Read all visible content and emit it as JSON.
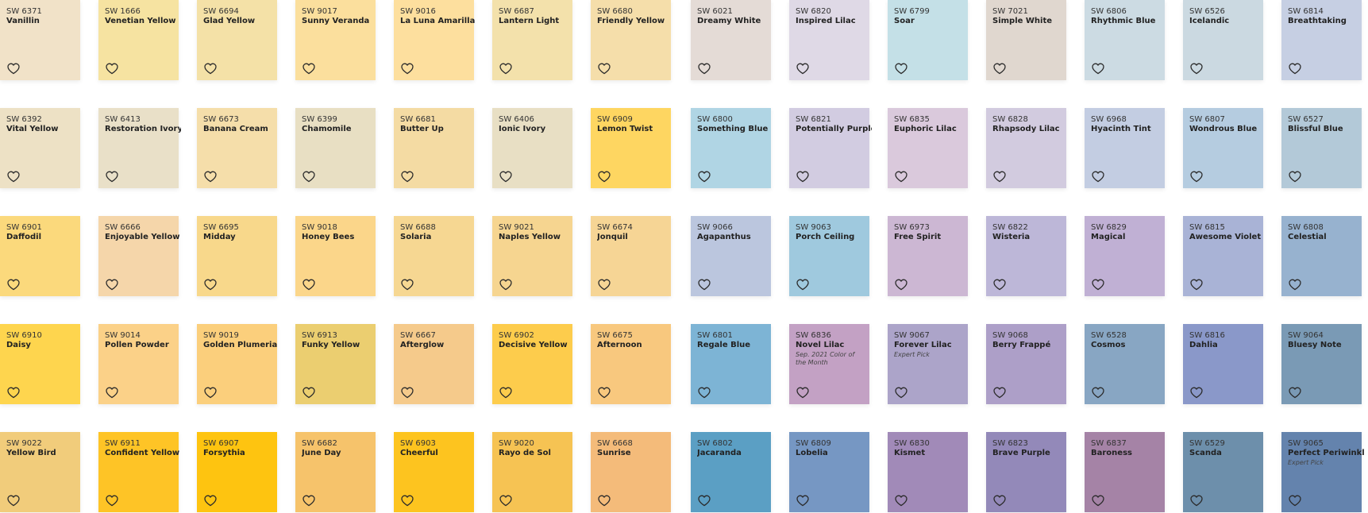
{
  "colors": {
    "text_code": "#333333",
    "text_name": "#222222",
    "heart_stroke": "#2a2a2a"
  },
  "icon": "heart-outline-icon",
  "rows": [
    {
      "chips": [
        {
          "code": "SW 6371",
          "name": "Vanillin",
          "color": "#f1e2c8"
        },
        {
          "code": "SW 1666",
          "name": "Venetian Yellow",
          "color": "#f6e3a1"
        },
        {
          "code": "SW 6694",
          "name": "Glad Yellow",
          "color": "#f4e1a7"
        },
        {
          "code": "SW 9017",
          "name": "Sunny Veranda",
          "color": "#fbdf9d"
        },
        {
          "code": "SW 9016",
          "name": "La Luna Amarilla",
          "color": "#fddf9e"
        },
        {
          "code": "SW 6687",
          "name": "Lantern Light",
          "color": "#f3e1ab"
        },
        {
          "code": "SW 6680",
          "name": "Friendly Yellow",
          "color": "#f5deaa"
        },
        {
          "code": "SW 6021",
          "name": "Dreamy White",
          "color": "#e4dbd6"
        },
        {
          "code": "SW 6820",
          "name": "Inspired Lilac",
          "color": "#dfd9e6"
        },
        {
          "code": "SW 6799",
          "name": "Soar",
          "color": "#c4e0e7"
        },
        {
          "code": "SW 7021",
          "name": "Simple White",
          "color": "#e0d7cf"
        },
        {
          "code": "SW 6806",
          "name": "Rhythmic Blue",
          "color": "#ccdbe3"
        },
        {
          "code": "SW 6526",
          "name": "Icelandic",
          "color": "#cbd9e1"
        },
        {
          "code": "SW 6814",
          "name": "Breathtaking",
          "color": "#c6cfe3"
        }
      ]
    },
    {
      "chips": [
        {
          "code": "SW 6392",
          "name": "Vital Yellow",
          "color": "#ede1c5"
        },
        {
          "code": "SW 6413",
          "name": "Restoration Ivory",
          "color": "#e9e0c8"
        },
        {
          "code": "SW 6673",
          "name": "Banana Cream",
          "color": "#f5deaa"
        },
        {
          "code": "SW 6399",
          "name": "Chamomile",
          "color": "#e8dfc3"
        },
        {
          "code": "SW 6681",
          "name": "Butter Up",
          "color": "#f4dba3"
        },
        {
          "code": "SW 6406",
          "name": "Ionic Ivory",
          "color": "#e8dfc4"
        },
        {
          "code": "SW 6909",
          "name": "Lemon Twist",
          "color": "#fed661"
        },
        {
          "code": "SW 6800",
          "name": "Something Blue",
          "color": "#b0d5e4"
        },
        {
          "code": "SW 6821",
          "name": "Potentially Purple",
          "color": "#d2cce1"
        },
        {
          "code": "SW 6835",
          "name": "Euphoric Lilac",
          "color": "#dac9dc"
        },
        {
          "code": "SW 6828",
          "name": "Rhapsody Lilac",
          "color": "#d2cbdf"
        },
        {
          "code": "SW 6968",
          "name": "Hyacinth Tint",
          "color": "#c3cde2"
        },
        {
          "code": "SW 6807",
          "name": "Wondrous Blue",
          "color": "#b5cce0"
        },
        {
          "code": "SW 6527",
          "name": "Blissful Blue",
          "color": "#b3c9d8"
        }
      ]
    },
    {
      "chips": [
        {
          "code": "SW 6901",
          "name": "Daffodil",
          "color": "#fbd97c"
        },
        {
          "code": "SW 6666",
          "name": "Enjoyable Yellow",
          "color": "#f5d6aa"
        },
        {
          "code": "SW 6695",
          "name": "Midday",
          "color": "#f8d88b"
        },
        {
          "code": "SW 9018",
          "name": "Honey Bees",
          "color": "#fbd68a"
        },
        {
          "code": "SW 6688",
          "name": "Solaria",
          "color": "#f6d792"
        },
        {
          "code": "SW 9021",
          "name": "Naples Yellow",
          "color": "#f6d590"
        },
        {
          "code": "SW 6674",
          "name": "Jonquil",
          "color": "#f6d595"
        },
        {
          "code": "SW 9066",
          "name": "Agapanthus",
          "color": "#bbc6de"
        },
        {
          "code": "SW 9063",
          "name": "Porch Ceiling",
          "color": "#9fc9de"
        },
        {
          "code": "SW 6973",
          "name": "Free Spirit",
          "color": "#ccb7d3"
        },
        {
          "code": "SW 6822",
          "name": "Wisteria",
          "color": "#bdb7d8"
        },
        {
          "code": "SW 6829",
          "name": "Magical",
          "color": "#c0b0d4"
        },
        {
          "code": "SW 6815",
          "name": "Awesome Violet",
          "color": "#a9b3d6"
        },
        {
          "code": "SW 6808",
          "name": "Celestial",
          "color": "#97b2cf"
        }
      ]
    },
    {
      "chips": [
        {
          "code": "SW 6910",
          "name": "Daisy",
          "color": "#fed54e"
        },
        {
          "code": "SW 9014",
          "name": "Pollen Powder",
          "color": "#fbd188"
        },
        {
          "code": "SW 9019",
          "name": "Golden Plumeria",
          "color": "#fbcf7c"
        },
        {
          "code": "SW 6913",
          "name": "Funky Yellow",
          "color": "#ebce70"
        },
        {
          "code": "SW 6667",
          "name": "Afterglow",
          "color": "#f5ca8b"
        },
        {
          "code": "SW 6902",
          "name": "Decisive Yellow",
          "color": "#fdcc4c"
        },
        {
          "code": "SW 6675",
          "name": "Afternoon",
          "color": "#f8c87e"
        },
        {
          "code": "SW 6801",
          "name": "Regale Blue",
          "color": "#7db4d5"
        },
        {
          "code": "SW 6836",
          "name": "Novel Lilac",
          "note": "Sep. 2021 Color of the Month",
          "color": "#c3a1c4"
        },
        {
          "code": "SW 9067",
          "name": "Forever Lilac",
          "note": "Expert Pick",
          "color": "#aca4c9"
        },
        {
          "code": "SW 9068",
          "name": "Berry Frappé",
          "color": "#ad9fc8"
        },
        {
          "code": "SW 6528",
          "name": "Cosmos",
          "color": "#88a6c3"
        },
        {
          "code": "SW 6816",
          "name": "Dahlia",
          "color": "#8a98c9"
        },
        {
          "code": "SW 9064",
          "name": "Bluesy Note",
          "color": "#7a9ab5"
        }
      ]
    },
    {
      "chips": [
        {
          "code": "SW 9022",
          "name": "Yellow Bird",
          "color": "#f1cc7b"
        },
        {
          "code": "SW 6911",
          "name": "Confident Yellow",
          "color": "#fec426"
        },
        {
          "code": "SW 6907",
          "name": "Forsythia",
          "color": "#fec410"
        },
        {
          "code": "SW 6682",
          "name": "June Day",
          "color": "#f6c36b"
        },
        {
          "code": "SW 6903",
          "name": "Cheerful",
          "color": "#fdc41f"
        },
        {
          "code": "SW 9020",
          "name": "Rayo de Sol",
          "color": "#f6c353"
        },
        {
          "code": "SW 6668",
          "name": "Sunrise",
          "color": "#f4bb7a"
        },
        {
          "code": "SW 6802",
          "name": "Jacaranda",
          "color": "#5b9fc4"
        },
        {
          "code": "SW 6809",
          "name": "Lobelia",
          "color": "#7697c3"
        },
        {
          "code": "SW 6830",
          "name": "Kismet",
          "color": "#a18ab8"
        },
        {
          "code": "SW 6823",
          "name": "Brave Purple",
          "color": "#9389b9"
        },
        {
          "code": "SW 6837",
          "name": "Baroness",
          "color": "#a583a6"
        },
        {
          "code": "SW 6529",
          "name": "Scanda",
          "color": "#6d8fab"
        },
        {
          "code": "SW 9065",
          "name": "Perfect Periwinkle",
          "note": "Expert Pick",
          "color": "#6483ad"
        }
      ]
    }
  ]
}
